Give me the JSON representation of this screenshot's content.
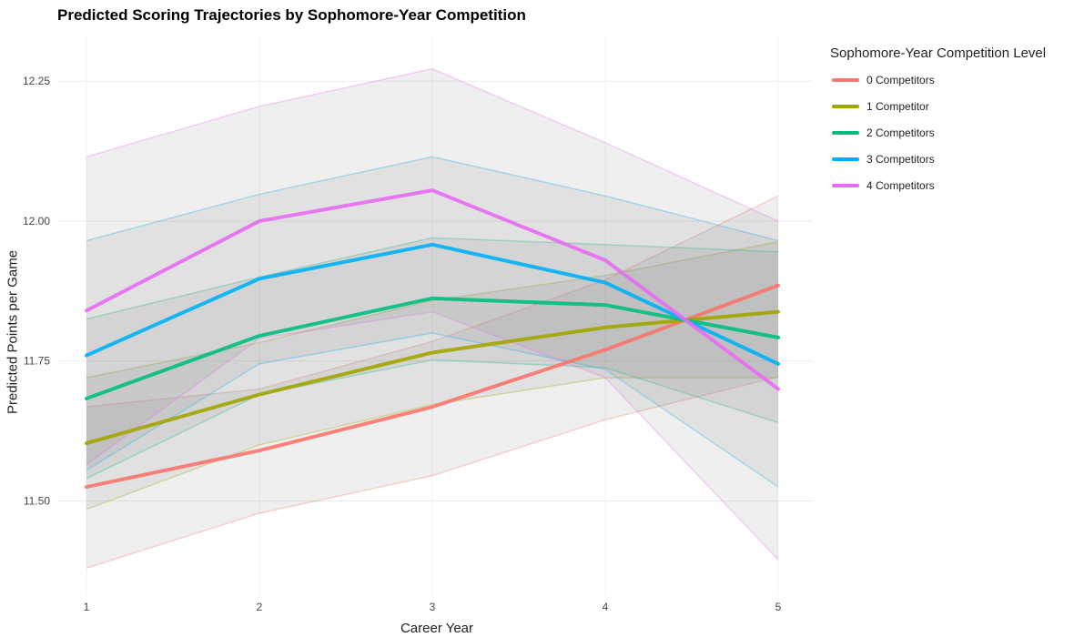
{
  "chart_data": {
    "type": "line",
    "title": "Predicted Scoring Trajectories by Sophomore-Year Competition",
    "xlabel": "Career Year",
    "ylabel": "Predicted Points per Game",
    "x": [
      1,
      2,
      3,
      4,
      5
    ],
    "x_ticks": [
      "1",
      "2",
      "3",
      "4",
      "5"
    ],
    "y_ticks": [
      11.5,
      11.75,
      12.0,
      12.25
    ],
    "y_tick_labels": [
      "11.50",
      "11.75",
      "12.00",
      "12.25"
    ],
    "ylim": [
      11.33,
      12.33
    ],
    "grid": true,
    "legend": {
      "title": "Sophomore-Year Competition Level",
      "position": "top-right, outside plot"
    },
    "series": [
      {
        "name": "0 Competitors",
        "color": "#F8766D",
        "values": [
          11.525,
          11.59,
          11.668,
          11.77,
          11.885
        ],
        "lower": [
          11.38,
          11.478,
          11.545,
          11.645,
          11.722
        ],
        "upper": [
          11.668,
          11.7,
          11.785,
          11.895,
          12.045
        ]
      },
      {
        "name": "1 Competitor",
        "color": "#A3A500",
        "values": [
          11.603,
          11.69,
          11.765,
          11.81,
          11.838
        ],
        "lower": [
          11.485,
          11.6,
          11.672,
          11.72,
          11.72
        ],
        "upper": [
          11.72,
          11.783,
          11.858,
          11.903,
          11.963
        ]
      },
      {
        "name": "2 Competitors",
        "color": "#00BF7D",
        "values": [
          11.683,
          11.795,
          11.862,
          11.85,
          11.792
        ],
        "lower": [
          11.54,
          11.69,
          11.752,
          11.738,
          11.64
        ],
        "upper": [
          11.825,
          11.9,
          11.97,
          11.958,
          11.945
        ]
      },
      {
        "name": "3 Competitors",
        "color": "#00B0F6",
        "values": [
          11.76,
          11.897,
          11.958,
          11.89,
          11.745
        ],
        "lower": [
          11.555,
          11.745,
          11.8,
          11.735,
          11.525
        ],
        "upper": [
          11.965,
          12.048,
          12.115,
          12.045,
          11.965
        ]
      },
      {
        "name": "4 Competitors",
        "color": "#E76BF3",
        "values": [
          11.84,
          12.0,
          12.055,
          11.93,
          11.7
        ],
        "lower": [
          11.565,
          11.79,
          11.838,
          11.72,
          11.395
        ],
        "upper": [
          12.115,
          12.205,
          12.272,
          12.14,
          12.0
        ]
      }
    ]
  }
}
